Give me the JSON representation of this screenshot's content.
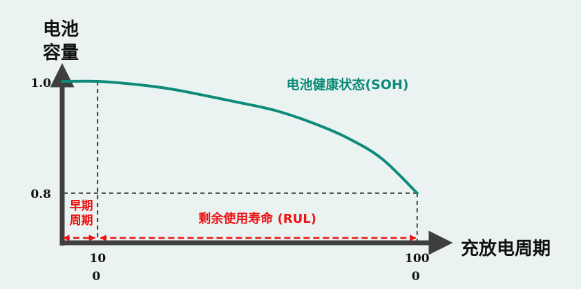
{
  "chart_data": {
    "type": "line",
    "ylabel_lines": [
      "电池",
      "容量"
    ],
    "xlabel": "充放电周期",
    "series": [
      {
        "name": "电池健康状态(SOH)",
        "color": "#0e8a78",
        "x": [
          0,
          10,
          20,
          30,
          40,
          50,
          60,
          70,
          80,
          90,
          100
        ],
        "y": [
          1.0,
          1.0,
          0.995,
          0.987,
          0.975,
          0.962,
          0.948,
          0.927,
          0.9,
          0.862,
          0.8
        ]
      }
    ],
    "y_ticks": [
      {
        "value": 1.0,
        "label": "1.0"
      },
      {
        "value": 0.8,
        "label": "0.8"
      }
    ],
    "x_ticks": [
      {
        "value": 10,
        "lines": [
          "10",
          "0"
        ]
      },
      {
        "value": 100,
        "lines": [
          "100",
          "0"
        ]
      }
    ],
    "guides": {
      "vertical_at_x": 10,
      "horizontal_at_y": 0.8
    },
    "regions": [
      {
        "label_lines": [
          "早期",
          "周期"
        ],
        "from": 0,
        "to": 10
      },
      {
        "label_lines": [
          "剩余使用寿命 (RUL)"
        ],
        "from": 10,
        "to": 100
      }
    ],
    "colors": {
      "axis": "#3f3f3f",
      "guide": "#222222",
      "region": "#ee1111",
      "text": "#111111"
    }
  }
}
